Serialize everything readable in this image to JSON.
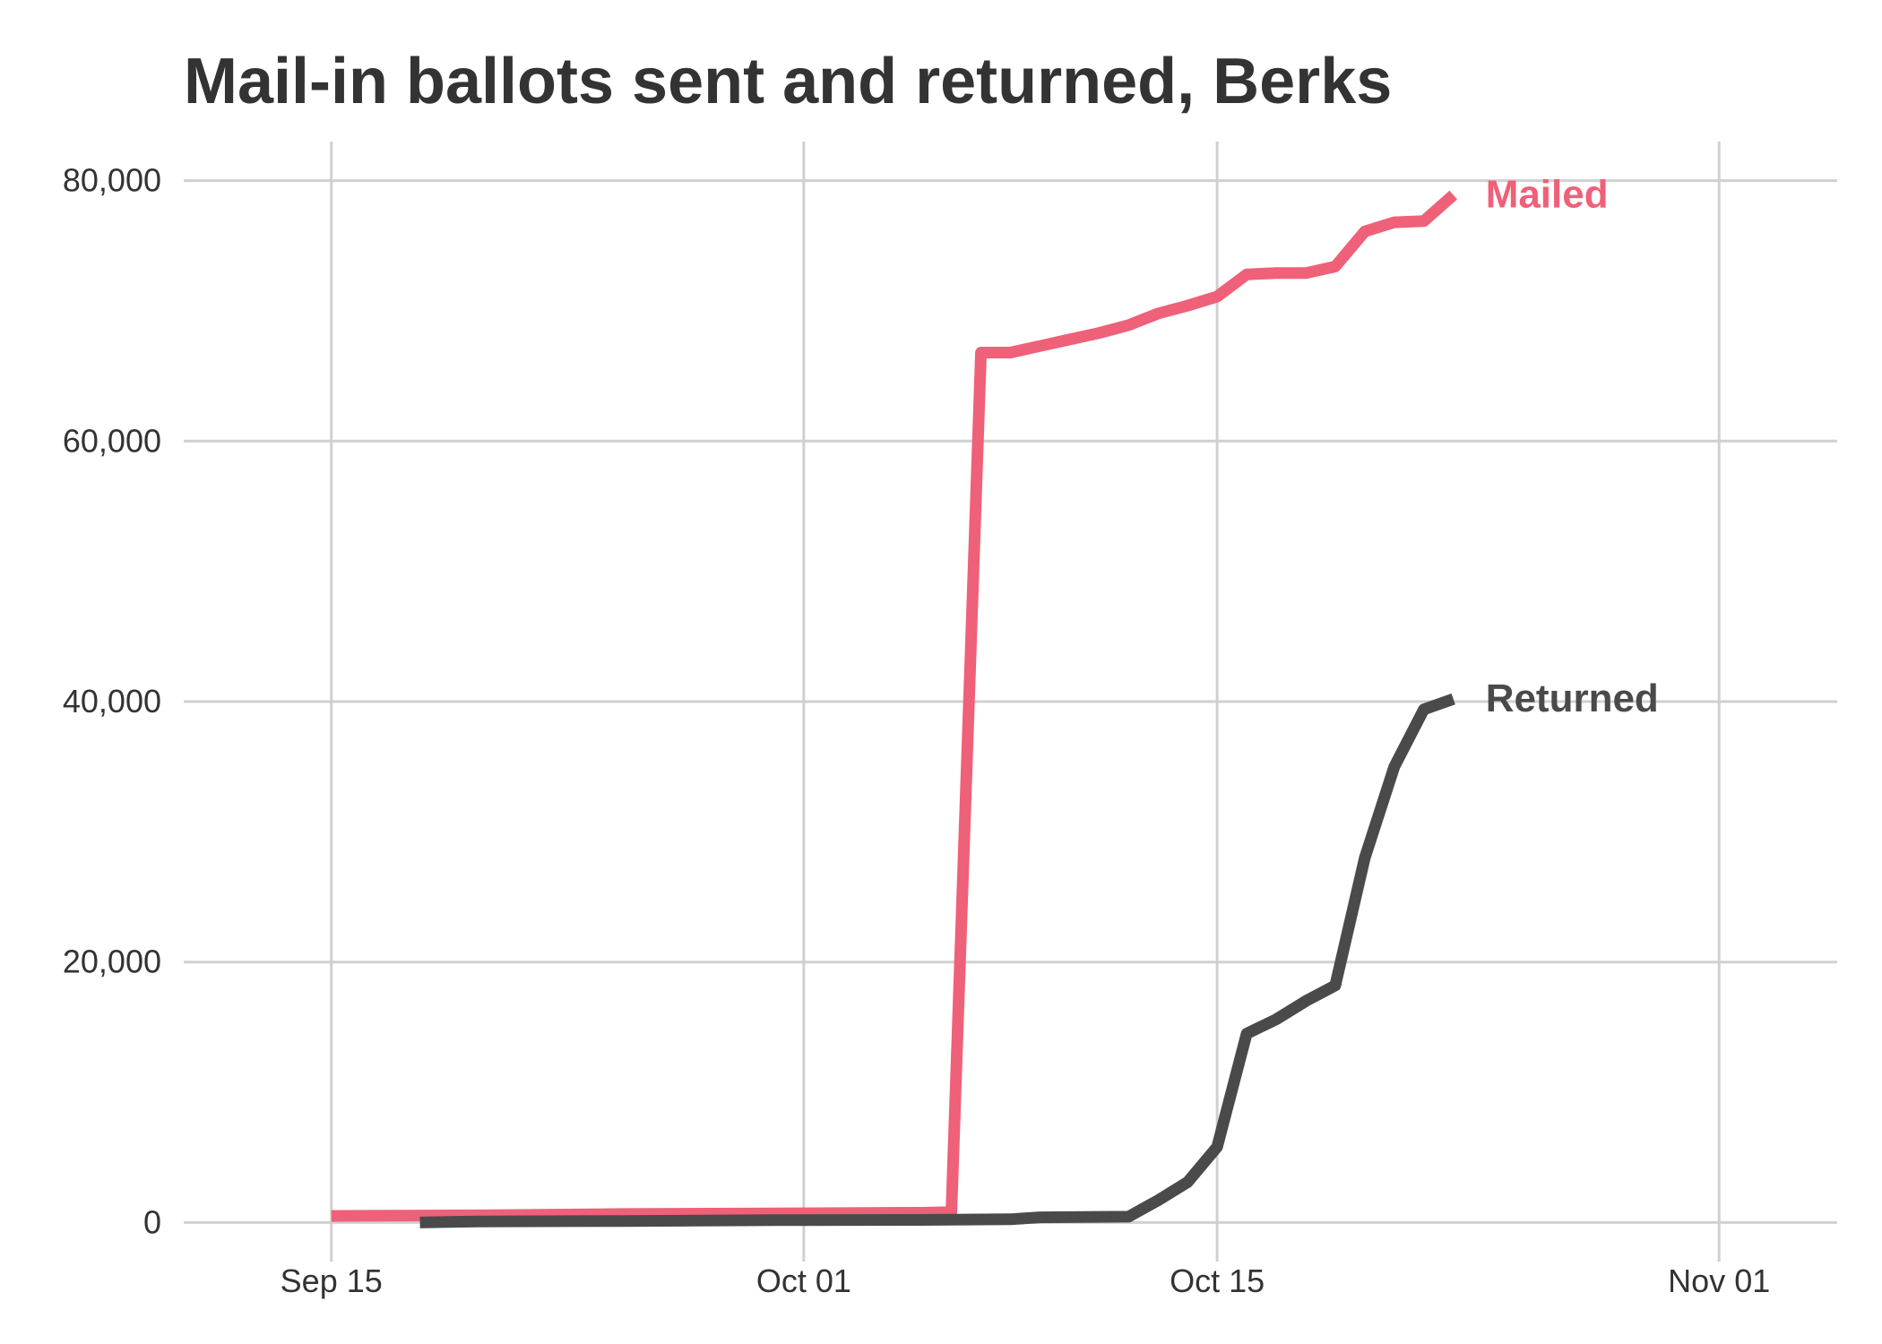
{
  "chart_data": {
    "type": "line",
    "title": "Mail-in ballots sent and returned, Berks",
    "xlabel": "",
    "ylabel": "",
    "x_axis": {
      "range": [
        "2020-09-10",
        "2020-11-05"
      ],
      "ticks": [
        {
          "date": "2020-09-15",
          "label": "Sep 15"
        },
        {
          "date": "2020-10-01",
          "label": "Oct 01"
        },
        {
          "date": "2020-10-15",
          "label": "Oct 15"
        },
        {
          "date": "2020-11-01",
          "label": "Nov 01"
        }
      ]
    },
    "y_axis": {
      "range": [
        -3000,
        83000
      ],
      "ticks": [
        {
          "value": 0,
          "label": "0"
        },
        {
          "value": 20000,
          "label": "20,000"
        },
        {
          "value": 40000,
          "label": "40,000"
        },
        {
          "value": 60000,
          "label": "60,000"
        },
        {
          "value": 80000,
          "label": "80,000"
        }
      ]
    },
    "grid": true,
    "legend": "direct labels at line ends",
    "series": [
      {
        "name": "Mailed",
        "color": "#ef6079",
        "points": [
          [
            "2020-09-15",
            500
          ],
          [
            "2020-09-20",
            550
          ],
          [
            "2020-09-25",
            650
          ],
          [
            "2020-09-30",
            700
          ],
          [
            "2020-10-05",
            750
          ],
          [
            "2020-10-06",
            800
          ],
          [
            "2020-10-07",
            66800
          ],
          [
            "2020-10-08",
            66800
          ],
          [
            "2020-10-09",
            67300
          ],
          [
            "2020-10-10",
            67800
          ],
          [
            "2020-10-11",
            68300
          ],
          [
            "2020-10-12",
            68900
          ],
          [
            "2020-10-13",
            69800
          ],
          [
            "2020-10-14",
            70400
          ],
          [
            "2020-10-15",
            71100
          ],
          [
            "2020-10-16",
            72800
          ],
          [
            "2020-10-17",
            72900
          ],
          [
            "2020-10-18",
            72900
          ],
          [
            "2020-10-19",
            73400
          ],
          [
            "2020-10-20",
            76100
          ],
          [
            "2020-10-21",
            76800
          ],
          [
            "2020-10-22",
            76900
          ],
          [
            "2020-10-23",
            78900
          ]
        ]
      },
      {
        "name": "Returned",
        "color": "#4a4a4a",
        "points": [
          [
            "2020-09-18",
            0
          ],
          [
            "2020-09-20",
            80
          ],
          [
            "2020-09-25",
            120
          ],
          [
            "2020-09-30",
            180
          ],
          [
            "2020-10-05",
            200
          ],
          [
            "2020-10-08",
            250
          ],
          [
            "2020-10-09",
            400
          ],
          [
            "2020-10-12",
            450
          ],
          [
            "2020-10-13",
            1700
          ],
          [
            "2020-10-14",
            3100
          ],
          [
            "2020-10-15",
            5800
          ],
          [
            "2020-10-16",
            14500
          ],
          [
            "2020-10-17",
            15600
          ],
          [
            "2020-10-18",
            17000
          ],
          [
            "2020-10-19",
            18200
          ],
          [
            "2020-10-20",
            28000
          ],
          [
            "2020-10-21",
            35000
          ],
          [
            "2020-10-22",
            39400
          ],
          [
            "2020-10-23",
            40200
          ]
        ]
      }
    ]
  }
}
